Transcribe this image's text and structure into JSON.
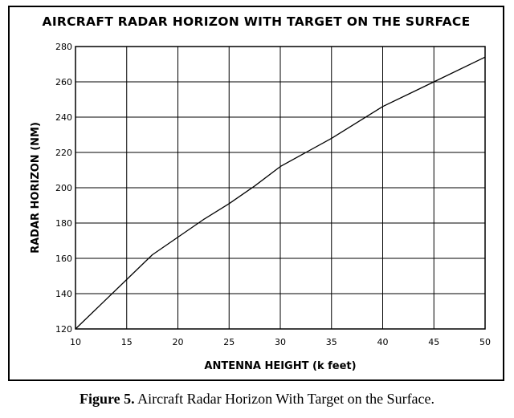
{
  "figure": {
    "caption_label": "Figure 5.",
    "caption_text": "Aircraft Radar Horizon With Target on the Surface."
  },
  "chart_data": {
    "type": "line",
    "title": "AIRCRAFT RADAR HORIZON WITH TARGET ON THE SURFACE",
    "xlabel": "ANTENNA HEIGHT (k feet)",
    "ylabel": "RADAR HORIZON (NM)",
    "xlim": [
      10,
      50
    ],
    "ylim": [
      120,
      280
    ],
    "x_ticks": [
      "10",
      "15",
      "20",
      "25",
      "30",
      "35",
      "40",
      "45",
      "50"
    ],
    "y_ticks": [
      "120",
      "140",
      "160",
      "180",
      "200",
      "220",
      "240",
      "260",
      "280"
    ],
    "grid": true,
    "series": [
      {
        "x": [
          10,
          12.5,
          15,
          17.5,
          20,
          22.5,
          25,
          27.5,
          30,
          35,
          40,
          45,
          50
        ],
        "y": [
          120,
          134,
          148,
          162,
          172,
          182,
          191,
          201,
          212,
          228,
          246,
          260,
          274
        ]
      }
    ],
    "colors": {
      "line": "#000000",
      "grid": "#000000"
    }
  }
}
